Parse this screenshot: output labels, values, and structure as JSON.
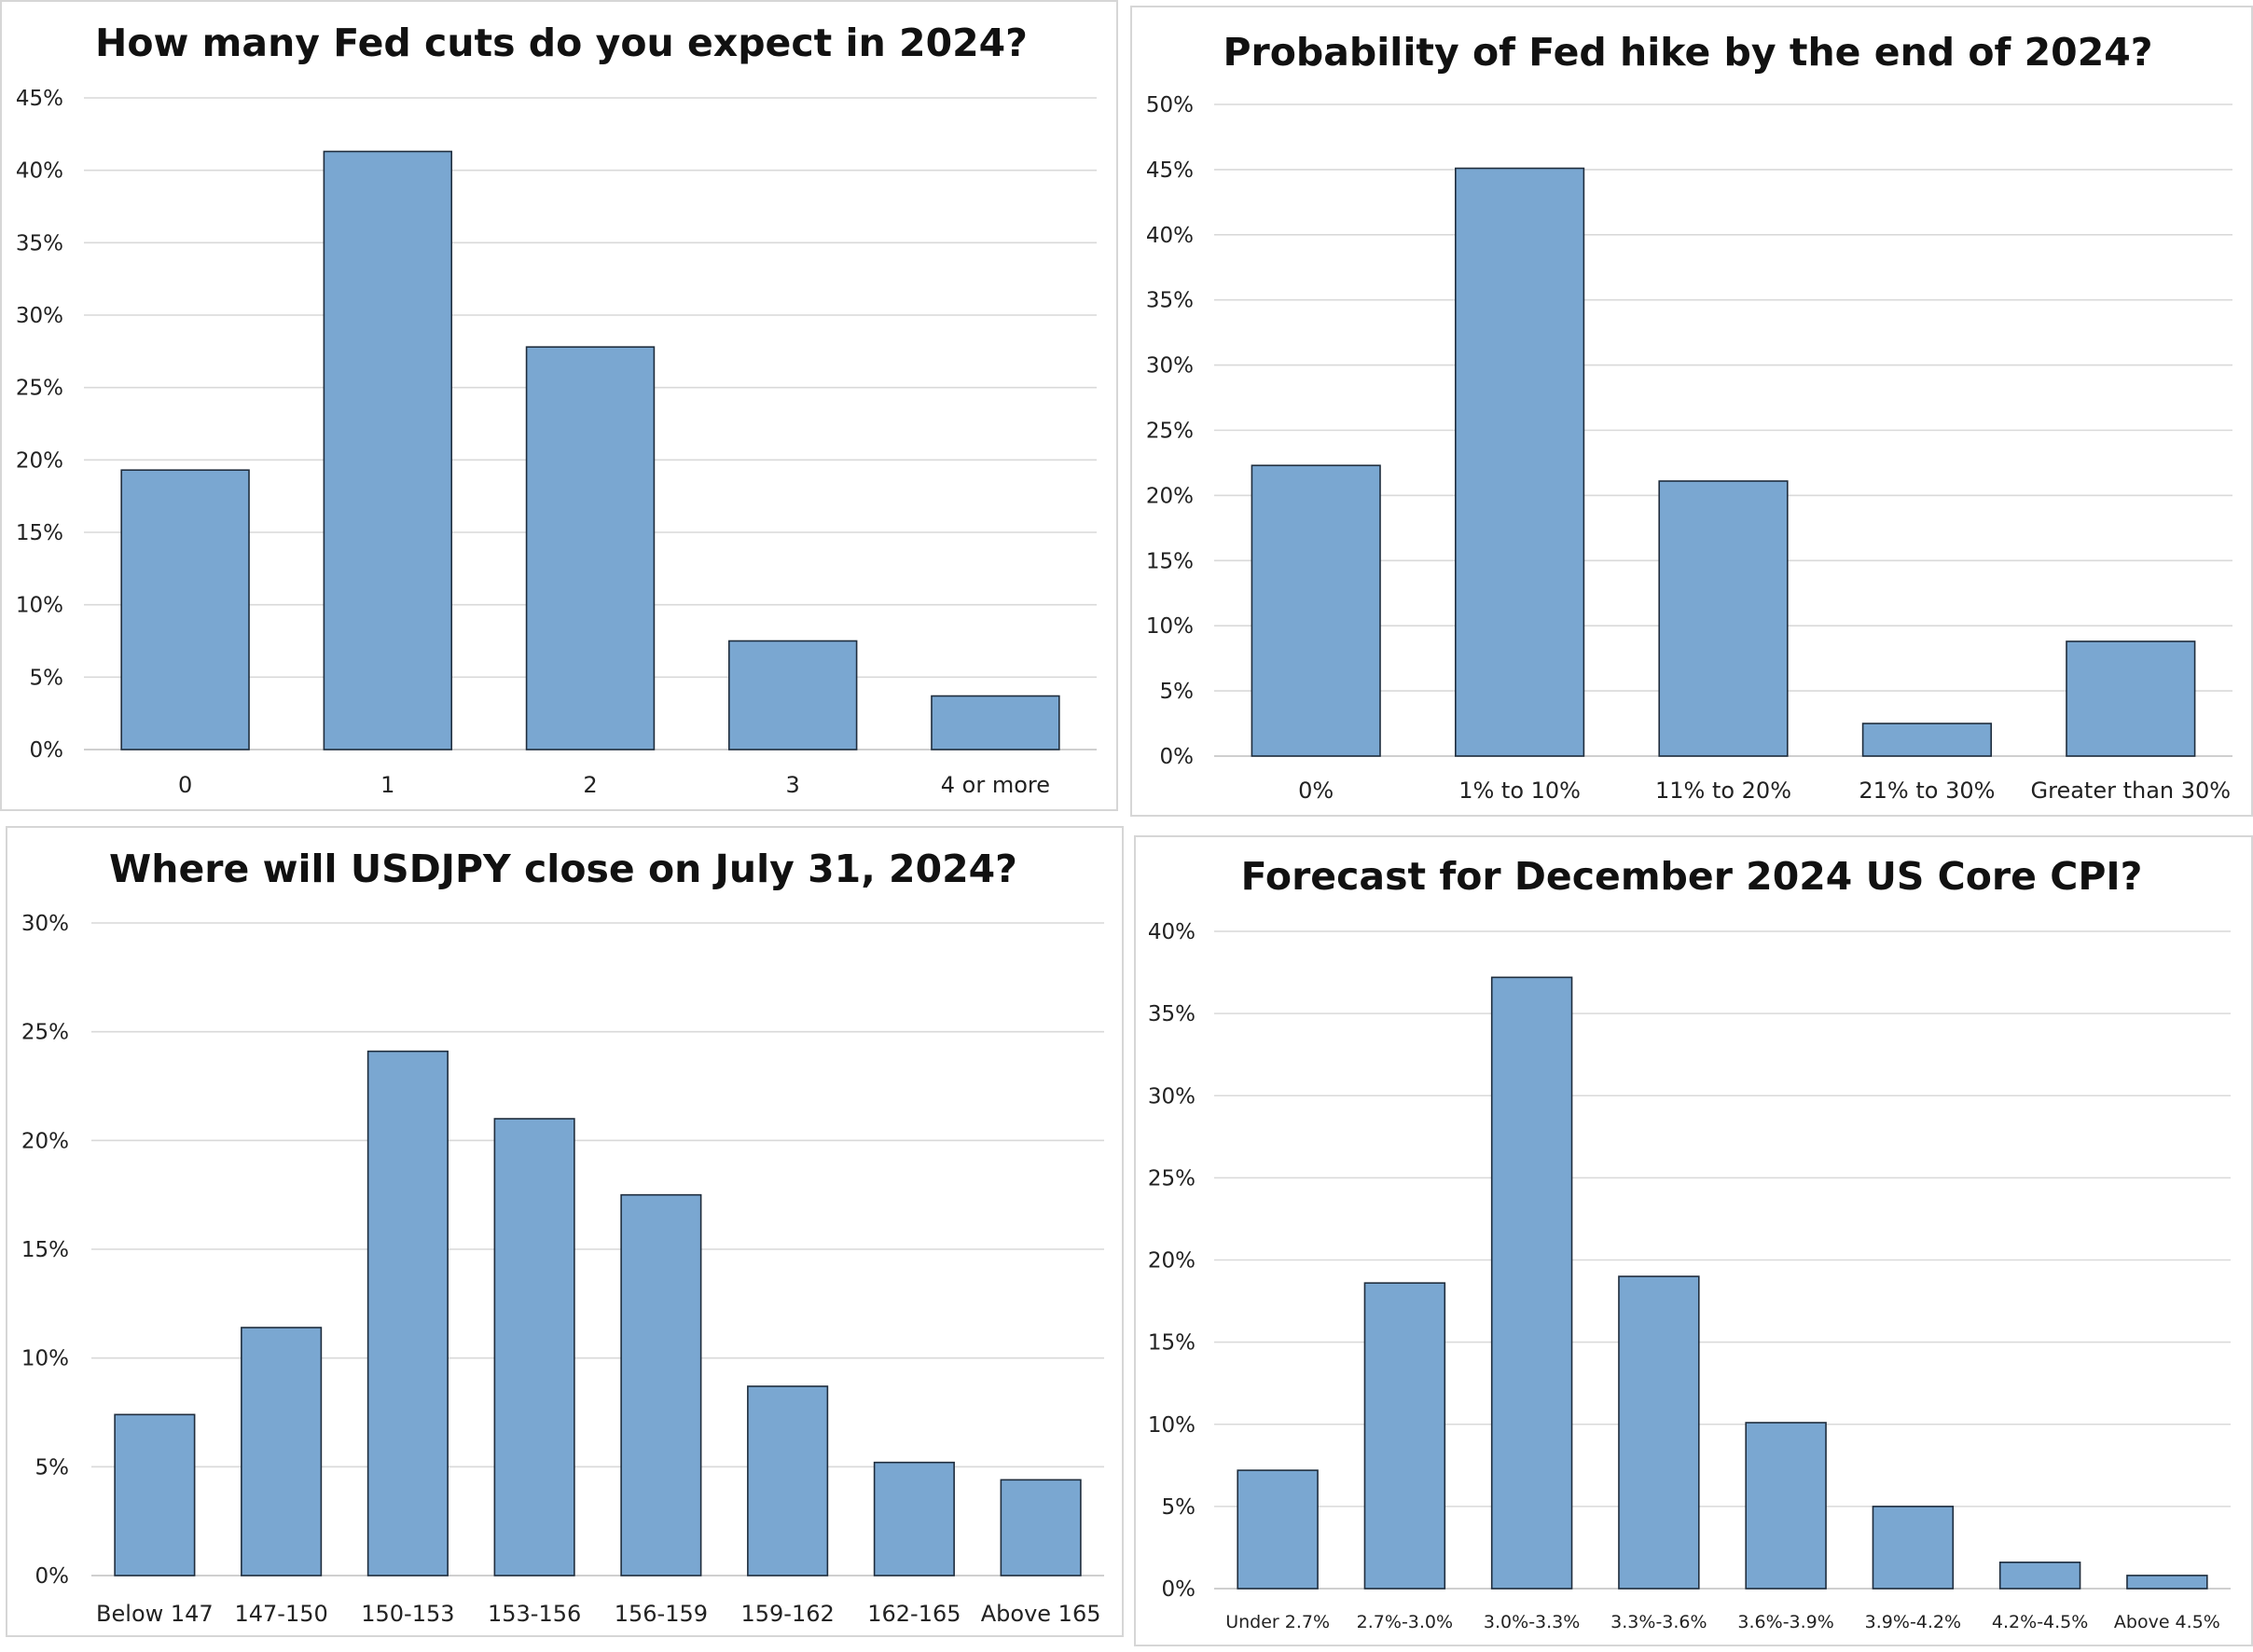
{
  "colors": {
    "bar_fill": "#7aa7d1",
    "bar_stroke": "#1f2d3d",
    "gridline": "#d9d9d9",
    "panel_border": "#d6d6d6"
  },
  "chart_data": [
    {
      "type": "bar",
      "title": "How many Fed cuts do you expect in 2024?",
      "categories": [
        "0",
        "1",
        "2",
        "3",
        "4 or more"
      ],
      "values": [
        19.3,
        41.3,
        27.8,
        7.5,
        3.7
      ],
      "ylim": [
        0,
        45
      ],
      "yticks": [
        "0%",
        "5%",
        "10%",
        "15%",
        "20%",
        "25%",
        "30%",
        "35%",
        "40%",
        "45%"
      ],
      "grid": true,
      "legend": "none"
    },
    {
      "type": "bar",
      "title": "Probability of Fed hike by the end of 2024?",
      "categories": [
        "0%",
        "1% to 10%",
        "11% to 20%",
        "21% to 30%",
        "Greater than 30%"
      ],
      "values": [
        22.3,
        45.1,
        21.1,
        2.5,
        8.8
      ],
      "ylim": [
        0,
        50
      ],
      "yticks": [
        "0%",
        "5%",
        "10%",
        "15%",
        "20%",
        "25%",
        "30%",
        "35%",
        "40%",
        "45%",
        "50%"
      ],
      "grid": true,
      "legend": "none"
    },
    {
      "type": "bar",
      "title": "Where will USDJPY close on July 31, 2024?",
      "categories": [
        "Below 147",
        "147-150",
        "150-153",
        "153-156",
        "156-159",
        "159-162",
        "162-165",
        "Above 165"
      ],
      "values": [
        7.4,
        11.4,
        24.1,
        21.0,
        17.5,
        8.7,
        5.2,
        4.4
      ],
      "ylim": [
        0,
        30
      ],
      "yticks": [
        "0%",
        "5%",
        "10%",
        "15%",
        "20%",
        "25%",
        "30%"
      ],
      "grid": true,
      "legend": "none"
    },
    {
      "type": "bar",
      "title": "Forecast for December 2024 US Core CPI?",
      "categories": [
        "Under 2.7%",
        "2.7%-3.0%",
        "3.0%-3.3%",
        "3.3%-3.6%",
        "3.6%-3.9%",
        "3.9%-4.2%",
        "4.2%-4.5%",
        "Above 4.5%"
      ],
      "values": [
        7.2,
        18.6,
        37.2,
        19.0,
        10.1,
        5.0,
        1.6,
        0.8
      ],
      "ylim": [
        0,
        40
      ],
      "yticks": [
        "0%",
        "5%",
        "10%",
        "15%",
        "20%",
        "25%",
        "30%",
        "35%",
        "40%"
      ],
      "grid": true,
      "legend": "none"
    }
  ]
}
